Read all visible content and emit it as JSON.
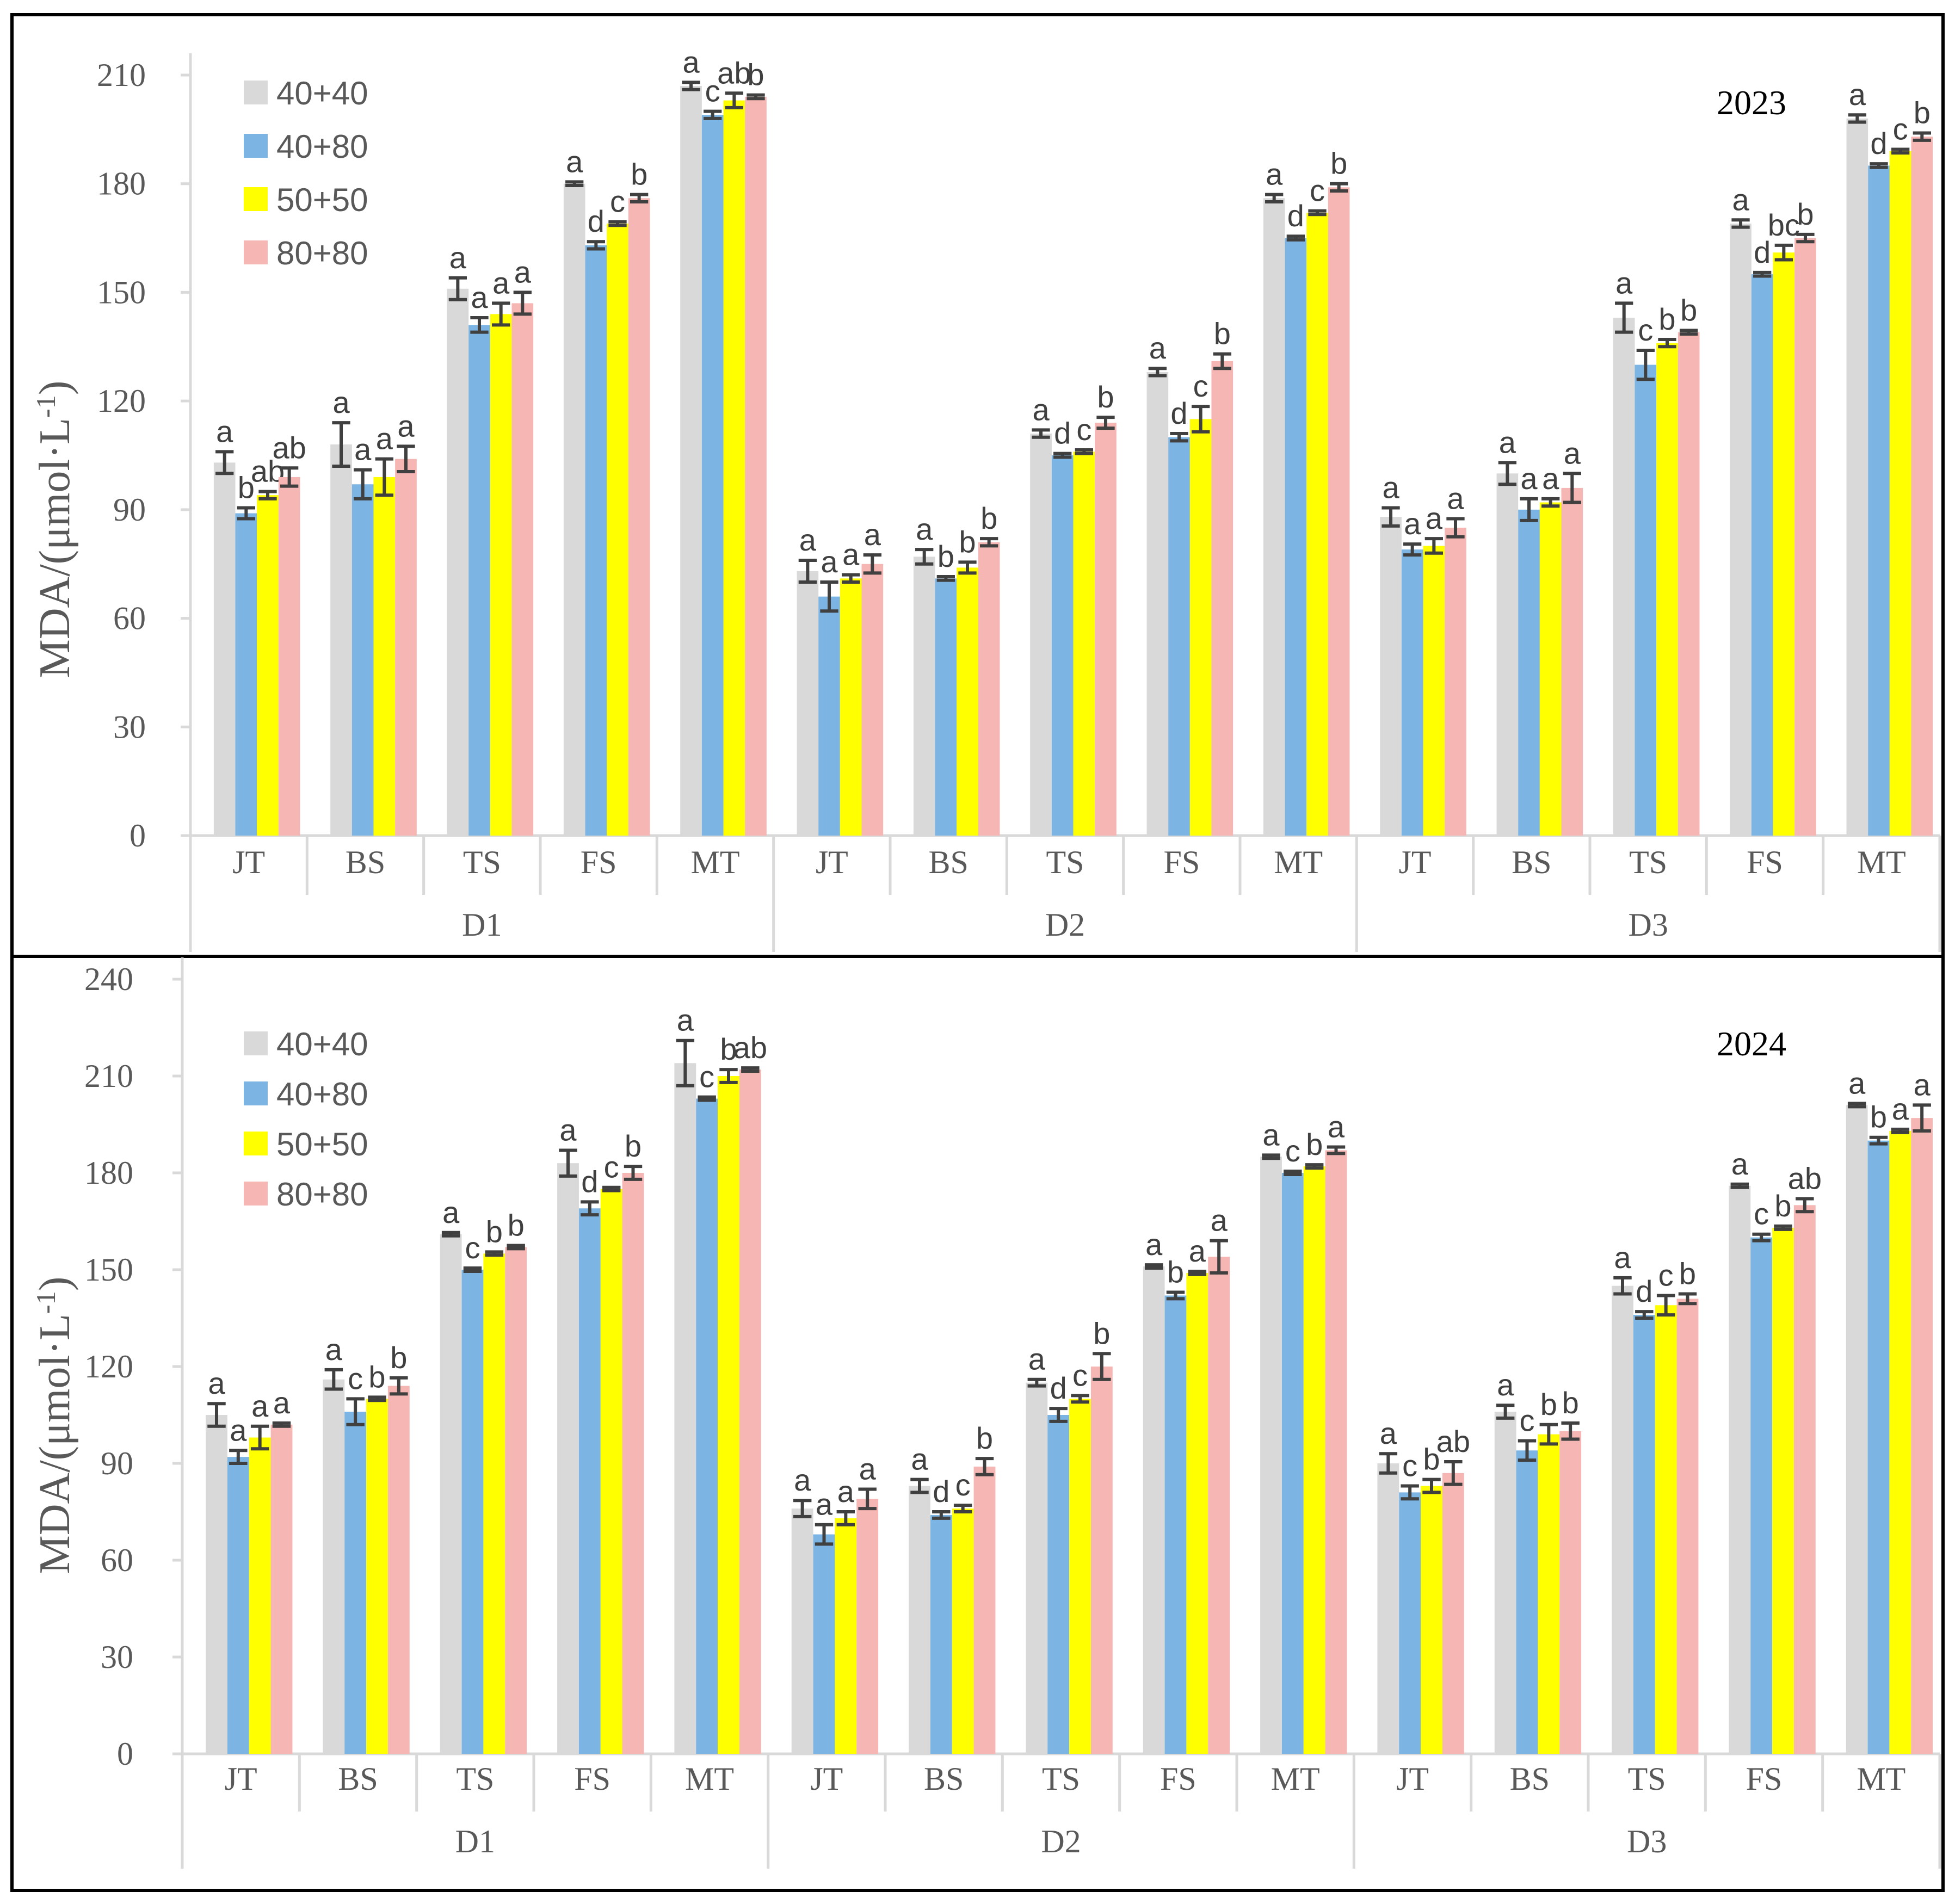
{
  "legend": [
    "40+40",
    "40+80",
    "50+50",
    "80+80"
  ],
  "colors": {
    "40+40": "#d9d9d9",
    "40+80": "#7cb4e3",
    "50+50": "#ffff00",
    "80+80": "#f6b6b4",
    "errorbar": "#404040",
    "axis": "#d9d9d9"
  },
  "chart_data": [
    {
      "type": "bar",
      "year_label": "2023",
      "ylabel": "MDA/(μmol·L",
      "ylabel_sup": "-1",
      "ylabel_end": ")",
      "ylim": [
        0,
        210
      ],
      "yticks": [
        0,
        30,
        60,
        90,
        120,
        150,
        180,
        210
      ],
      "groups": [
        "D1",
        "D2",
        "D3"
      ],
      "categories": [
        "JT",
        "BS",
        "TS",
        "FS",
        "MT"
      ],
      "series": [
        {
          "name": "40+40",
          "values": [
            [
              103,
              108,
              151,
              180,
              207
            ],
            [
              73,
              77,
              111,
              128,
              176
            ],
            [
              88,
              100,
              143,
              169,
              198
            ]
          ],
          "errors": [
            [
              3,
              6,
              3,
              0.5,
              1
            ],
            [
              3,
              2,
              1,
              1,
              1
            ],
            [
              2.5,
              3,
              4,
              1,
              1
            ]
          ]
        },
        {
          "name": "40+80",
          "values": [
            [
              89,
              97,
              141,
              163,
              199
            ],
            [
              66,
              71,
              105,
              110,
              165
            ],
            [
              79,
              90,
              130,
              155,
              185
            ]
          ],
          "errors": [
            [
              1.5,
              4,
              2,
              1,
              1
            ],
            [
              4,
              0.5,
              0.5,
              1,
              0.5
            ],
            [
              1.5,
              3,
              4,
              0.5,
              0.5
            ]
          ]
        },
        {
          "name": "50+50",
          "values": [
            [
              94,
              99,
              144,
              169,
              203
            ],
            [
              71,
              74,
              106,
              115,
              172
            ],
            [
              80,
              92,
              136,
              161,
              189
            ]
          ],
          "errors": [
            [
              1,
              5,
              3,
              0.5,
              2
            ],
            [
              1,
              1.5,
              0.5,
              3.5,
              0.5
            ],
            [
              2,
              1,
              1,
              2,
              0.5
            ]
          ]
        },
        {
          "name": "80+80",
          "values": [
            [
              99,
              104,
              147,
              176,
              204
            ],
            [
              75,
              81,
              114,
              131,
              179
            ],
            [
              85,
              96,
              139,
              165,
              193
            ]
          ],
          "errors": [
            [
              2.5,
              3.5,
              3,
              1,
              0.5
            ],
            [
              2.5,
              1,
              1.5,
              2,
              1
            ],
            [
              2.5,
              4,
              0.5,
              1,
              1
            ]
          ]
        }
      ],
      "letters": [
        [
          [
            "a",
            "b",
            "ab",
            "ab"
          ],
          [
            "a",
            "a",
            "a",
            "a"
          ],
          [
            "a",
            "a",
            "a",
            "a"
          ],
          [
            "a",
            "d",
            "c",
            "b"
          ],
          [
            "a",
            "c",
            "ab",
            "b"
          ]
        ],
        [
          [
            "a",
            "a",
            "a",
            "a"
          ],
          [
            "a",
            "b",
            "b",
            "b"
          ],
          [
            "a",
            "d",
            "c",
            "b"
          ],
          [
            "a",
            "d",
            "c",
            "b"
          ],
          [
            "a",
            "d",
            "c",
            "b"
          ]
        ],
        [
          [
            "a",
            "a",
            "a",
            "a"
          ],
          [
            "a",
            "a",
            "a",
            "a"
          ],
          [
            "a",
            "c",
            "b",
            "b"
          ],
          [
            "a",
            "d",
            "bc",
            "b"
          ],
          [
            "a",
            "d",
            "c",
            "b"
          ]
        ]
      ]
    },
    {
      "type": "bar",
      "year_label": "2024",
      "ylabel": "MDA/(μmol·L",
      "ylabel_sup": "-1",
      "ylabel_end": ")",
      "ylim": [
        0,
        240
      ],
      "yticks": [
        0,
        30,
        60,
        90,
        120,
        150,
        180,
        210,
        240
      ],
      "groups": [
        "D1",
        "D2",
        "D3"
      ],
      "categories": [
        "JT",
        "BS",
        "TS",
        "FS",
        "MT"
      ],
      "series": [
        {
          "name": "40+40",
          "values": [
            [
              105,
              116,
              161,
              183,
              214
            ],
            [
              76,
              83,
              115,
              151,
              185
            ],
            [
              90,
              106,
              145,
              176,
              201
            ]
          ],
          "errors": [
            [
              3.5,
              3,
              0.5,
              4,
              7
            ],
            [
              2.5,
              2,
              1,
              0.5,
              0.5
            ],
            [
              3,
              2,
              2.5,
              0.5,
              0.5
            ]
          ]
        },
        {
          "name": "40+80",
          "values": [
            [
              92,
              106,
              150,
              169,
              203
            ],
            [
              68,
              74,
              105,
              142,
              180
            ],
            [
              81,
              94,
              136,
              160,
              190
            ]
          ],
          "errors": [
            [
              2,
              4,
              0.5,
              2,
              0.5
            ],
            [
              3,
              1,
              2,
              1,
              0.5
            ],
            [
              2,
              3,
              1,
              1,
              1
            ]
          ]
        },
        {
          "name": "50+50",
          "values": [
            [
              98,
              110,
              155,
              175,
              210
            ],
            [
              73,
              76,
              110,
              149,
              182
            ],
            [
              83,
              99,
              139,
              163,
              193
            ]
          ],
          "errors": [
            [
              3.5,
              0.5,
              0.5,
              0.5,
              2
            ],
            [
              2,
              1,
              1,
              0.5,
              0.5
            ],
            [
              2,
              3,
              3,
              0.5,
              0.5
            ]
          ]
        },
        {
          "name": "80+80",
          "values": [
            [
              102,
              114,
              157,
              180,
              212
            ],
            [
              79,
              89,
              120,
              154,
              187
            ],
            [
              87,
              100,
              141,
              170,
              197
            ]
          ],
          "errors": [
            [
              0.5,
              2.5,
              0.5,
              2,
              0.5
            ],
            [
              3,
              2.5,
              4,
              5,
              1
            ],
            [
              3.5,
              2.5,
              1.5,
              2,
              4
            ]
          ]
        }
      ],
      "letters": [
        [
          [
            "a",
            "a",
            "a",
            "a"
          ],
          [
            "a",
            "c",
            "b",
            "b"
          ],
          [
            "a",
            "c",
            "b",
            "b"
          ],
          [
            "a",
            "d",
            "c",
            "b"
          ],
          [
            "a",
            "c",
            "b",
            "ab"
          ]
        ],
        [
          [
            "a",
            "a",
            "a",
            "a"
          ],
          [
            "a",
            "d",
            "c",
            "b"
          ],
          [
            "a",
            "d",
            "c",
            "b"
          ],
          [
            "a",
            "b",
            "a",
            "a"
          ],
          [
            "a",
            "c",
            "b",
            "a"
          ]
        ],
        [
          [
            "a",
            "c",
            "b",
            "ab"
          ],
          [
            "a",
            "c",
            "b",
            "b"
          ],
          [
            "a",
            "d",
            "c",
            "b"
          ],
          [
            "a",
            "c",
            "b",
            "ab"
          ],
          [
            "a",
            "b",
            "a",
            "a"
          ]
        ]
      ]
    }
  ]
}
